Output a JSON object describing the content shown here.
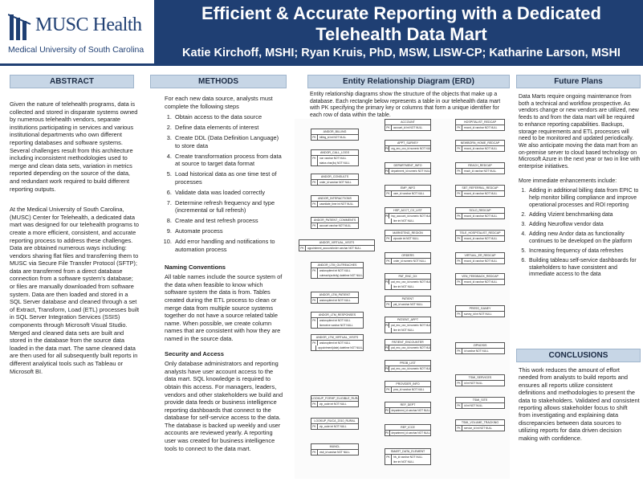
{
  "header": {
    "logo_name": "MUSC Health",
    "logo_sub": "Medical University of South Carolina",
    "title_line1": "Efficient & Accurate Reporting with a Dedicated",
    "title_line2": "Telehealth Data Mart",
    "authors": "Katie Kirchoff, MSHI; Ryan Kruis, PhD, MSW, LISW-CP; Katharine Larson, MSHI"
  },
  "abstract": {
    "heading": "ABSTRACT",
    "p1": "Given the nature of telehealth programs, data is collected and stored in disparate systems owned by numerous telehealth vendors, separate institutions participating in services and various institutional departments who own different reporting databases and software systems. Several challenges result from this architecture including inconsistent methodologies used to merge and clean data sets, variation in metrics reported depending on the source of the data, and redundant work required to build different reporting outputs.",
    "p2": "At the Medical University of South Carolina, (MUSC) Center for Telehealth, a dedicated data mart was designed for our telehealth programs to create a more efficient, consistent, and accurate reporting process to address these challenges. Data are obtained numerous ways including: vendors sharing flat files and transferring them to MUSC via Secure File Transfer Protocol (SFTP); data are transferred from a direct database connection from a software system's database; or files are manually downloaded from software system. Data are then loaded and stored in a SQL Server database and cleaned through a set of Extract, Transform, Load (ETL) processes built in SQL Server Integration Services (SSIS) components through Microsoft Visual Studio. Merged and cleaned data sets are built and stored in the database from the source data loaded in the data mart. The same cleaned data are then used for all subsequently built reports in different analytical tools such as Tableau or Microsoft BI."
  },
  "methods": {
    "heading": "METHODS",
    "intro": "For each new data source, analysts must complete the following steps",
    "steps": [
      "Obtain access to the data source",
      "Define data elements of interest",
      "Create DDL (Data Definition Language) to store data",
      "Create transformation process from data at source to target data format",
      "Load historical data as one time test of processes",
      "Validate data was loaded correctly",
      "Determine refresh frequency and type (incremental or full refresh)",
      "Create and test refresh process",
      "Automate process",
      "Add error handling and notifications to automation process"
    ],
    "naming_heading": "Naming Conventions",
    "naming_text": "All table names include the source system of the data when feasible to know which software system the data is from. Tables created during the ETL process to clean or merge data from multiple source systems together do not have a source related table name. When possible, we create column names that are consistent with how they are named in the source data.",
    "security_heading": "Security and Access",
    "security_text": "Only database administrators and reporting analysts have user account access to the data mart. SQL knowledge is required to obtain this access. For managers, leaders, vendors and other stakeholders we build and provide data feeds or business intelligence reporting dashboards that connect to the database for self-service access to the data. The database is backed up weekly and user accounts are reviewed yearly. A reporting user was created for business intelligence tools to connect to the data mart."
  },
  "erd": {
    "heading": "Entity Relationship Diagram (ERD)",
    "intro": "Entity relationship diagrams show the structure of the objects that make up a database. Each rectangle below represents a table in our telehealth data mart with PK specifying the primary key or columns that form a unique identifier for each row of data within the table.",
    "tables": [
      {
        "name": "ANDOR_BILLING",
        "rows": [
          [
            "PK",
            "billing_id int NOT NULL"
          ]
        ]
      },
      {
        "name": "ANDOR_CALL_LOGS",
        "rows": [
          [
            "PK",
            "non varchar NOT NULL"
          ],
          [
            "",
            "status char(4s) NOT NULL"
          ]
        ]
      },
      {
        "name": "ANDOR_CONSULTS",
        "rows": [
          [
            "PK",
            "order_id varchar NOT NULL"
          ]
        ]
      },
      {
        "name": "ANDOR_INTERACTIONS",
        "rows": [
          [
            "PK",
            "caseidate_time int NOT NULL"
          ]
        ]
      },
      {
        "name": "ANDOR_PATIENT_COMMENTS",
        "rows": [
          [
            "PK",
            "account varchar NOT NULL"
          ]
        ]
      },
      {
        "name": "ANDOR_VIRTUAL_VISITS",
        "rows": [
          [
            "PK",
            "appointment_account/order varchar NOT NULL"
          ]
        ]
      },
      {
        "name": "ANDOR_LTM_OUTREACHES",
        "rows": [
          [
            "PK",
            "andoroptient int NOT NULL"
          ],
          [
            "",
            "outreach(activity) datetime NOT NULL"
          ]
        ]
      },
      {
        "name": "ANDOR_LTM_PATIENT",
        "rows": [
          [
            "PK",
            "andoroptient int NOT NULL"
          ]
        ]
      },
      {
        "name": "ANDOR_LTM_RESPONSES",
        "rows": [
          [
            "PK",
            "andoroptient int NOT NULL"
          ],
          [
            "",
            "lloreceive varchar NOT NULL"
          ]
        ]
      },
      {
        "name": "ANDOR_LTM_VIRTUAL_VISITS",
        "rows": [
          [
            "PK",
            "andoroptient int NOT NULL"
          ],
          [
            "",
            "appointment(date) datetime NOT NULL"
          ]
        ]
      },
      {
        "name": "LOOKUP_FORHP_ELIGIBLE_RURAL",
        "rows": [
          [
            "PK",
            "zip_code int NOT NULL"
          ]
        ]
      },
      {
        "name": "LOOKUP_RUCA_2010_RURAL",
        "rows": [
          [
            "PK",
            "zip_code int NOT NULL"
          ]
        ]
      },
      {
        "name": "MUNCL",
        "rows": [
          [
            "PK",
            "visit_id varchar NOT NULL"
          ]
        ]
      },
      {
        "name": "ACCOUNT",
        "rows": [
          [
            "PK",
            "account_id int NOT NULL"
          ]
        ]
      },
      {
        "name": "APPT_SURVEY",
        "rows": [
          [
            "PK",
            "org_enc_csn_id numeric NOT NULL"
          ]
        ]
      },
      {
        "name": "DEPARTMENT_INFO",
        "rows": [
          [
            "PK",
            "department_id numeric NOT NULL"
          ]
        ]
      },
      {
        "name": "EMP_INFO",
        "rows": [
          [
            "PK",
            "user_id varchar NOT NULL"
          ]
        ]
      },
      {
        "name": "HSP_ACCT_CX_LIST",
        "rows": [
          [
            "PK",
            "hsp_account_id numeric NOT NULL"
          ],
          [
            "",
            "line int NOT NULL"
          ]
        ]
      },
      {
        "name": "MARKETING_REGION",
        "rows": [
          [
            "PK",
            "zipcode int NOT NULL"
          ]
        ]
      },
      {
        "name": "ORDERS",
        "rows": [
          [
            "PK",
            "order_id numeric NOT NULL"
          ]
        ]
      },
      {
        "name": "PAT_ENC_DX",
        "rows": [
          [
            "PK",
            "pat_enc_csn_id numeric NOT NULL"
          ],
          [
            "",
            "line int NOT NULL"
          ]
        ]
      },
      {
        "name": "PATIENT",
        "rows": [
          [
            "PK",
            "pat_id varchar NOT NULL"
          ]
        ]
      },
      {
        "name": "PATIENT_APPT",
        "rows": [
          [
            "PK",
            "pat_enc_csn_id numeric NOT NULL"
          ],
          [
            "",
            "line int NOT NULL"
          ]
        ]
      },
      {
        "name": "PATIENT_ENCOUNTER",
        "rows": [
          [
            "PK",
            "pat_enc_csn_id numeric NOT NULL"
          ]
        ]
      },
      {
        "name": "PROB_LIST",
        "rows": [
          [
            "PK",
            "pat_enc_csn_id numeric NOT NULL"
          ]
        ]
      },
      {
        "name": "PROVIDER_INFO",
        "rows": [
          [
            "PK",
            "prov_id varchar NOT NULL"
          ]
        ]
      },
      {
        "name": "REF_DEPT",
        "rows": [
          [
            "PK",
            "department_id varchar NOT NULL"
          ]
        ]
      },
      {
        "name": "REF_ICCE",
        "rows": [
          [
            "PK",
            "department_id varchar NOT NULL"
          ]
        ]
      },
      {
        "name": "SMART_DATA_ELEMENT",
        "rows": [
          [
            "PK",
            "hlv_id varchar NOT NULL"
          ],
          [
            "",
            "line int NOT NULL"
          ]
        ]
      },
      {
        "name": "HOSPITALIST_REDCAP",
        "rows": [
          [
            "PK",
            "record_id varchar NOT NULL"
          ]
        ]
      },
      {
        "name": "NEWBORN_HOME_REDCAP",
        "rows": [
          [
            "PK",
            "record_id varchar NOT NULL"
          ]
        ]
      },
      {
        "name": "REACH_REDCAP",
        "rows": [
          [
            "PK",
            "reach_id varchar NOT NULL"
          ]
        ]
      },
      {
        "name": "SBT_REFERRAL_REDCAP",
        "rows": [
          [
            "PK",
            "record_id varchar NOT NULL"
          ]
        ]
      },
      {
        "name": "SOLO_REDCAP",
        "rows": [
          [
            "PK",
            "record_id varchar NOT NULL"
          ]
        ]
      },
      {
        "name": "TELE_HOSPITALIST_REDCAP",
        "rows": [
          [
            "PK",
            "record_id varchar NOT NULL"
          ]
        ]
      },
      {
        "name": "VIRTUAL_ER_REDCAP",
        "rows": [
          [
            "PK",
            "record_id varchar NOT NULL"
          ]
        ]
      },
      {
        "name": "VEN_FEEDBACK_REDCAP",
        "rows": [
          [
            "PK",
            "record_id varchar NOT NULL"
          ]
        ]
      },
      {
        "name": "PRESS_GANEY",
        "rows": [
          [
            "PK",
            "survey_id int NOT NULL"
          ]
        ]
      },
      {
        "name": "ZIPNOSIS",
        "rows": [
          [
            "PK",
            "id varchar NOT NULL"
          ]
        ]
      },
      {
        "name": "TSMI_SERVICES",
        "rows": [
          [
            "PK",
            "id int NOT NULL"
          ]
        ]
      },
      {
        "name": "TSMI_SITE",
        "rows": [
          [
            "PK",
            "id int NOT NULL"
          ]
        ]
      },
      {
        "name": "TSMI_VOLUME_TRACKING",
        "rows": [
          [
            "PK",
            "service_id int NOT NULL"
          ]
        ]
      }
    ]
  },
  "future": {
    "heading": "Future Plans",
    "p1": "Data Marts require ongoing maintenance from both a technical and workflow prospective. As vendors change or new vendors are utilized, new feeds to and from the data mart will be required to enhance reporting capabilities. Backups, storage requirements and ETL processes will need to be monitored and updated periodically. We also anticipate moving the data mart from an on-premise server to cloud based technology on Microsoft Azure in the next year or two in line with enterprise initiatives.",
    "enh_intro": "More immediate enhancements include:",
    "enhancements": [
      "Adding in additional billing data from EPIC to help monitor billing compliance and improve operational processes and ROI reporting",
      "Adding Vizient benchmarking data",
      "Adding Neuroflow vendor data",
      "Adding new Andor data as functionality continues to be developed on the platform",
      "Increasing frequency of data refreshes",
      "Building tableau self-service dashboards for stakeholders to have consistent and immediate access to the data"
    ]
  },
  "conclusions": {
    "heading": "CONCLUSIONS",
    "text": "This work reduces the amount of effort needed from analysts to build reports and ensures all reports utilize consistent definitions and methodologies to present the data to stakeholders. Validated and consistent reporting allows stakeholder focus to shift from investigating and explaining data discrepancies between data sources to utilizing reports for data driven decision making with confidence."
  },
  "colors": {
    "header_bg": "#1f3f73",
    "section_head_bg": "#c7d6e6"
  }
}
